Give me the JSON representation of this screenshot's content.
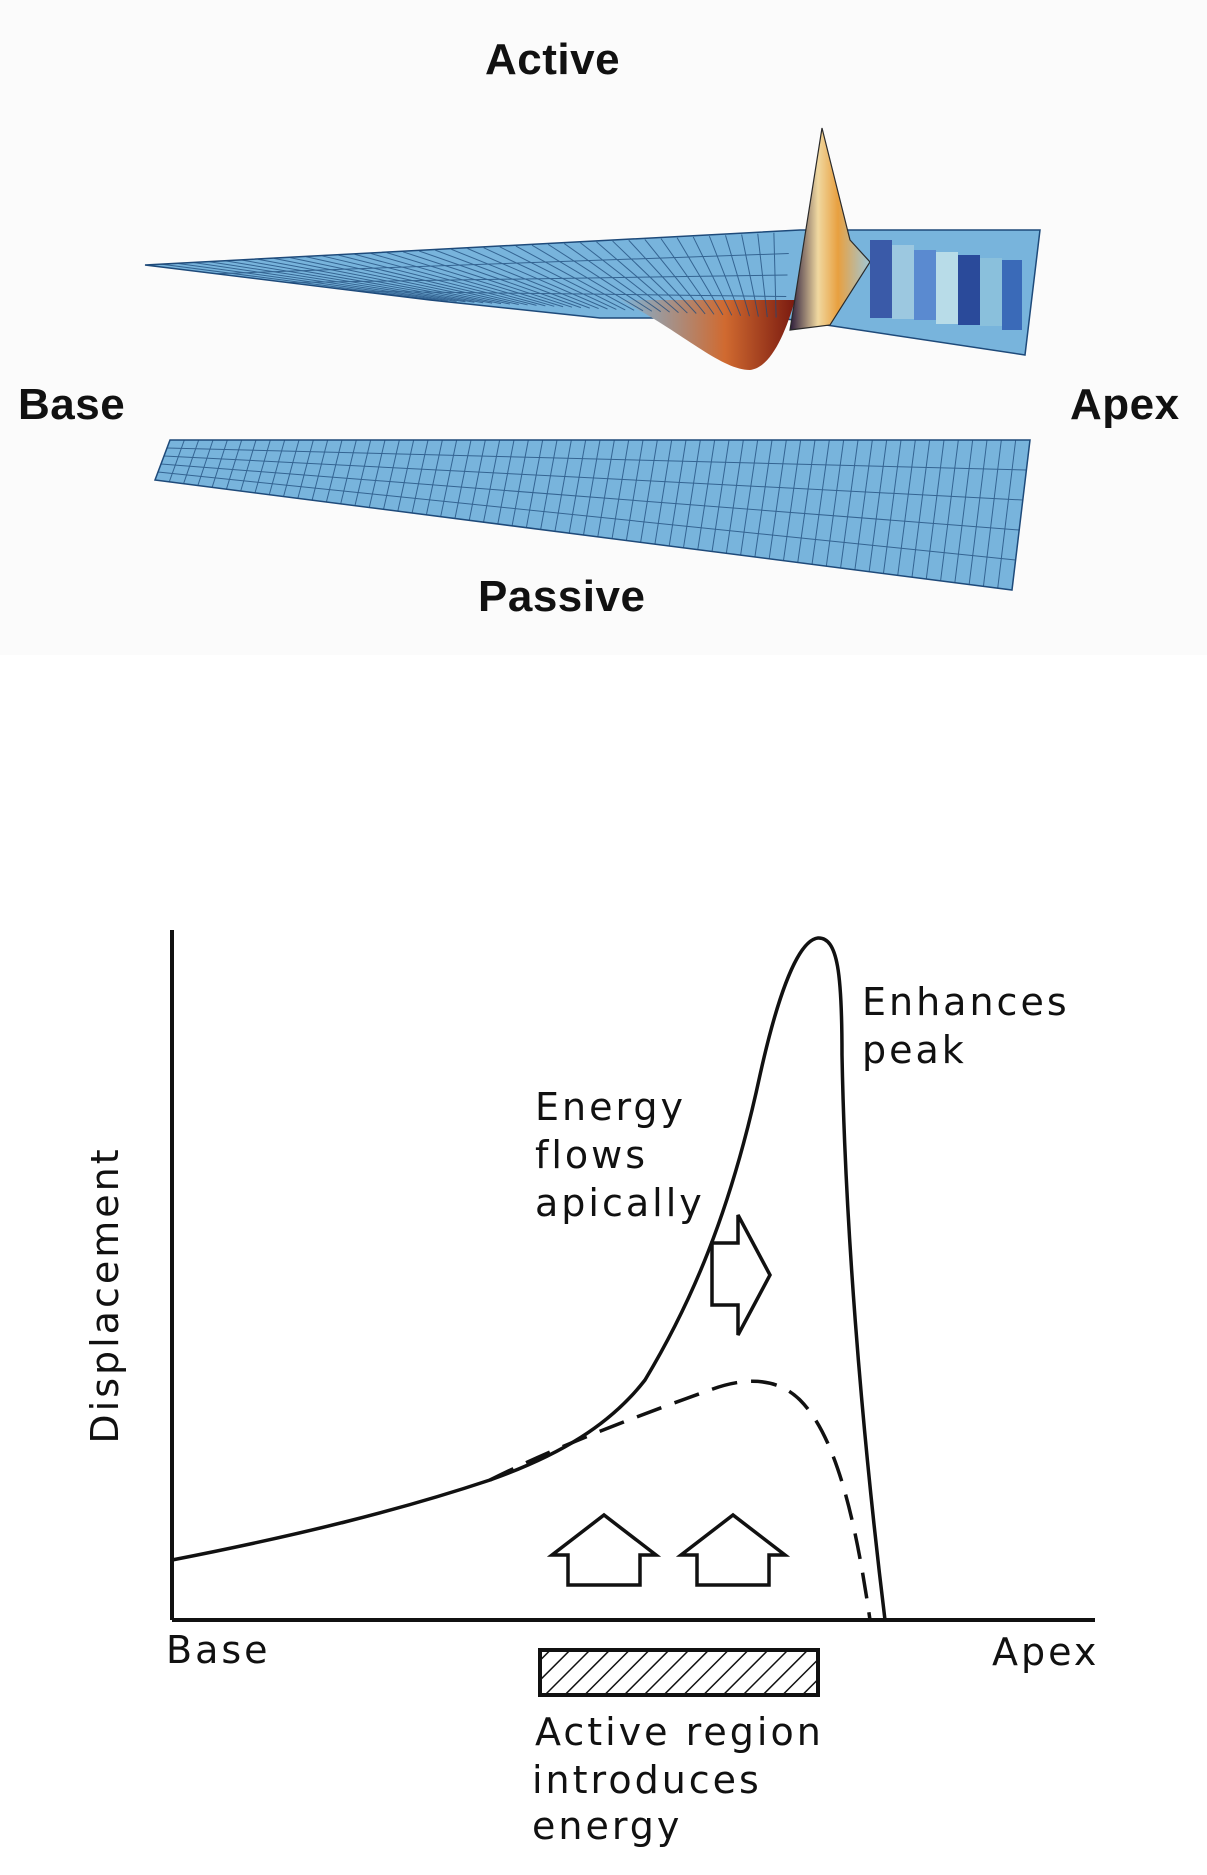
{
  "top": {
    "active_label": "Active",
    "passive_label": "Passive",
    "base_label": "Base",
    "apex_label": "Apex",
    "surface_color": "#6fb0dc",
    "grid_color": "#1e4a7a"
  },
  "bottom": {
    "ylabel": "Displacement",
    "xlabel_left": "Base",
    "xlabel_right": "Apex",
    "energy_lines": [
      "Energy",
      "flows",
      "apically"
    ],
    "peak_lines": [
      "Enhances",
      "peak"
    ],
    "active_region_lines": [
      "Active region",
      "introduces",
      "energy"
    ]
  }
}
